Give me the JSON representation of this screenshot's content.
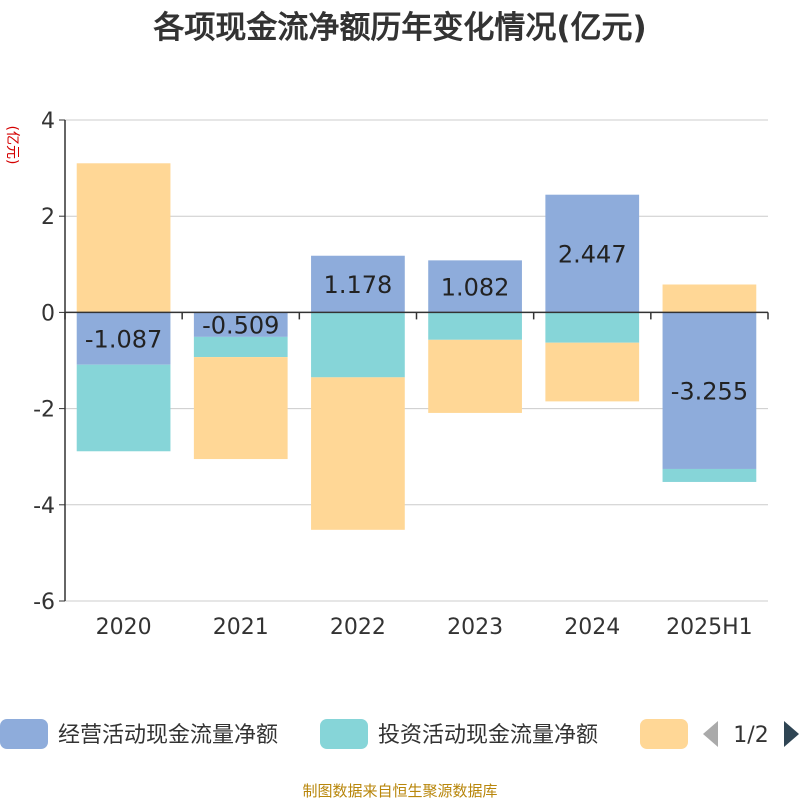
{
  "chart_data": {
    "type": "bar",
    "stacked": true,
    "title": "各项现金流净额历年变化情况(亿元)",
    "ylabel": "(亿元)",
    "categories": [
      "2020",
      "2021",
      "2022",
      "2023",
      "2024",
      "2025H1"
    ],
    "ylim": [
      -6,
      4
    ],
    "yticks": [
      4,
      2,
      0,
      -2,
      -4,
      -6
    ],
    "grid": true,
    "series": [
      {
        "name": "经营活动现金流量净额",
        "color": "#8eacdb",
        "values": [
          -1.087,
          -0.509,
          1.178,
          1.082,
          2.447,
          -3.255
        ]
      },
      {
        "name": "投资活动现金流量净额",
        "color": "#86d5d8",
        "values": [
          -1.8,
          -0.42,
          -1.35,
          -0.57,
          -0.63,
          -0.27
        ]
      },
      {
        "name": "",
        "color": "#ffd796",
        "values": [
          3.1,
          -2.12,
          -3.17,
          -1.52,
          -1.22,
          0.58
        ]
      }
    ],
    "data_labels": [
      "-1.087",
      "-0.509",
      "1.178",
      "1.082",
      "2.447",
      "-3.255"
    ],
    "legend": {
      "placement": "bottom",
      "page": "1/2"
    }
  },
  "source": "制图数据来自恒生聚源数据库"
}
